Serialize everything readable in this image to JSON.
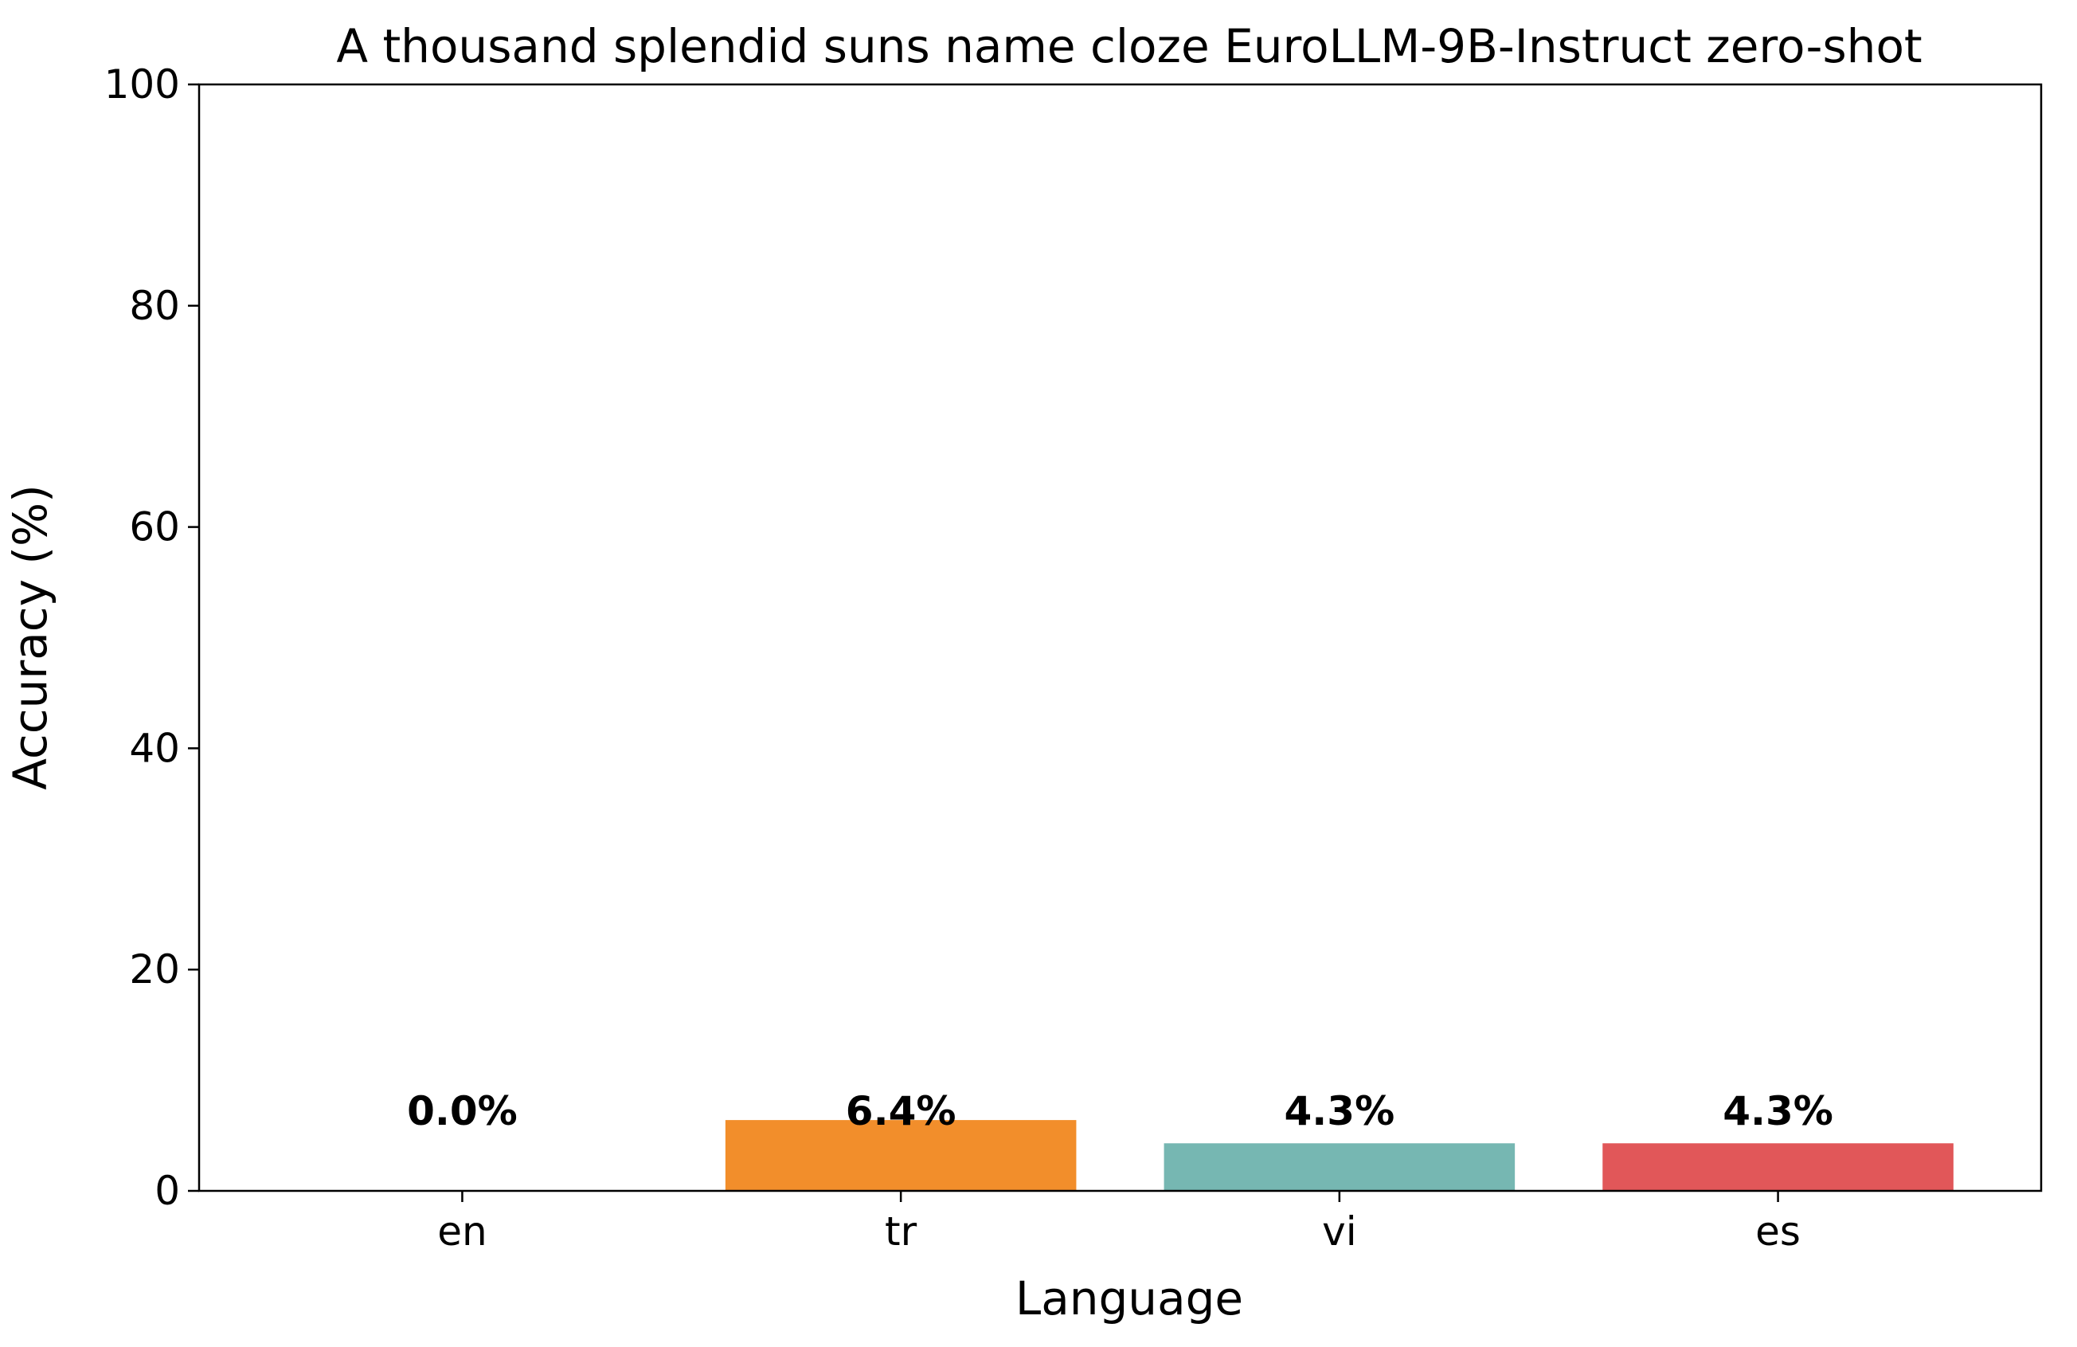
{
  "chart_data": {
    "type": "bar",
    "title": "A thousand splendid suns name cloze EuroLLM-9B-Instruct zero-shot",
    "xlabel": "Language",
    "ylabel": "Accuracy (%)",
    "categories": [
      "en",
      "tr",
      "vi",
      "es"
    ],
    "values": [
      0.0,
      6.4,
      4.3,
      4.3
    ],
    "value_labels": [
      "0.0%",
      "6.4%",
      "4.3%",
      "4.3%"
    ],
    "colors": [
      "#f28e2b",
      "#f28e2b",
      "#76b7b2",
      "#e15759"
    ],
    "ylim": [
      0,
      100
    ],
    "yticks": [
      "0",
      "20",
      "40",
      "60",
      "80",
      "100"
    ],
    "grid": false,
    "legend": "none"
  }
}
